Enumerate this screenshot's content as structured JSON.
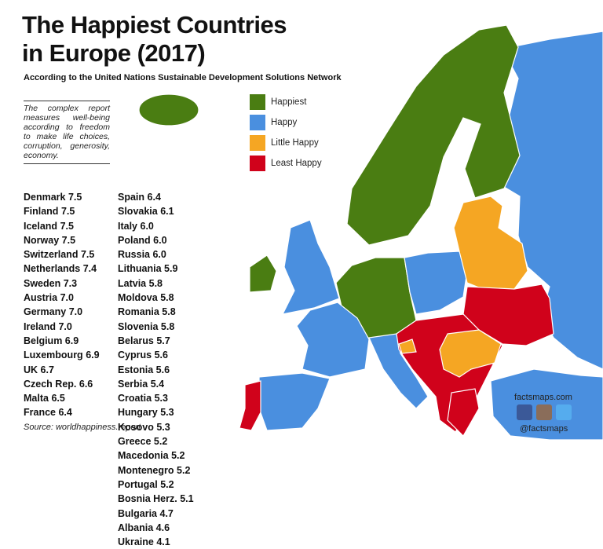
{
  "header": {
    "title_line1": "The Happiest Countries",
    "title_line2": "in Europe (2017)",
    "subtitle": "According to the United Nations Sustainable Development Solutions Network"
  },
  "note": "The complex report measures well-being according to freedom to make life choices, corruption, generosity, economy.",
  "legend": [
    {
      "label": "Happiest",
      "color": "#4a7d12"
    },
    {
      "label": "Happy",
      "color": "#4a8fdf"
    },
    {
      "label": "Little Happy",
      "color": "#f5a623"
    },
    {
      "label": "Least Happy",
      "color": "#d0021b"
    }
  ],
  "rankings": [
    {
      "name": "Denmark",
      "score": "7.5"
    },
    {
      "name": "Finland",
      "score": "7.5"
    },
    {
      "name": "Iceland",
      "score": "7.5"
    },
    {
      "name": "Norway",
      "score": "7.5"
    },
    {
      "name": "Switzerland",
      "score": "7.5"
    },
    {
      "name": "Netherlands",
      "score": "7.4"
    },
    {
      "name": "Sweden",
      "score": "7.3"
    },
    {
      "name": "Austria",
      "score": "7.0"
    },
    {
      "name": "Germany",
      "score": "7.0"
    },
    {
      "name": "Ireland",
      "score": "7.0"
    },
    {
      "name": "Belgium",
      "score": "6.9"
    },
    {
      "name": "Luxembourg",
      "score": "6.9"
    },
    {
      "name": "UK",
      "score": "6.7"
    },
    {
      "name": "Czech Rep.",
      "score": "6.6"
    },
    {
      "name": "Malta",
      "score": "6.5"
    },
    {
      "name": "France",
      "score": "6.4"
    },
    {
      "name": "Spain",
      "score": "6.4"
    },
    {
      "name": "Slovakia",
      "score": "6.1"
    },
    {
      "name": "Italy",
      "score": "6.0"
    },
    {
      "name": "Poland",
      "score": "6.0"
    },
    {
      "name": "Russia",
      "score": "6.0"
    },
    {
      "name": "Lithuania",
      "score": "5.9"
    },
    {
      "name": "Latvia",
      "score": "5.8"
    },
    {
      "name": "Moldova",
      "score": "5.8"
    },
    {
      "name": "Romania",
      "score": "5.8"
    },
    {
      "name": "Slovenia",
      "score": "5.8"
    },
    {
      "name": "Belarus",
      "score": "5.7"
    },
    {
      "name": "Cyprus",
      "score": "5.6"
    },
    {
      "name": "Estonia",
      "score": "5.6"
    },
    {
      "name": "Serbia",
      "score": "5.4"
    },
    {
      "name": "Croatia",
      "score": "5.3"
    },
    {
      "name": "Hungary",
      "score": "5.3"
    },
    {
      "name": "Kosovo",
      "score": "5.3"
    },
    {
      "name": "Greece",
      "score": "5.2"
    },
    {
      "name": "Macedonia",
      "score": "5.2"
    },
    {
      "name": "Montenegro",
      "score": "5.2"
    },
    {
      "name": "Portugal",
      "score": "5.2"
    },
    {
      "name": "Bosnia Herz.",
      "score": "5.1"
    },
    {
      "name": "Bulgaria",
      "score": "4.7"
    },
    {
      "name": "Albania",
      "score": "4.6"
    },
    {
      "name": "Ukraine",
      "score": "4.1"
    }
  ],
  "source": "Source: worldhappiness.report",
  "credits": {
    "site": "factsmaps.com",
    "handle": "@factsmaps"
  }
}
